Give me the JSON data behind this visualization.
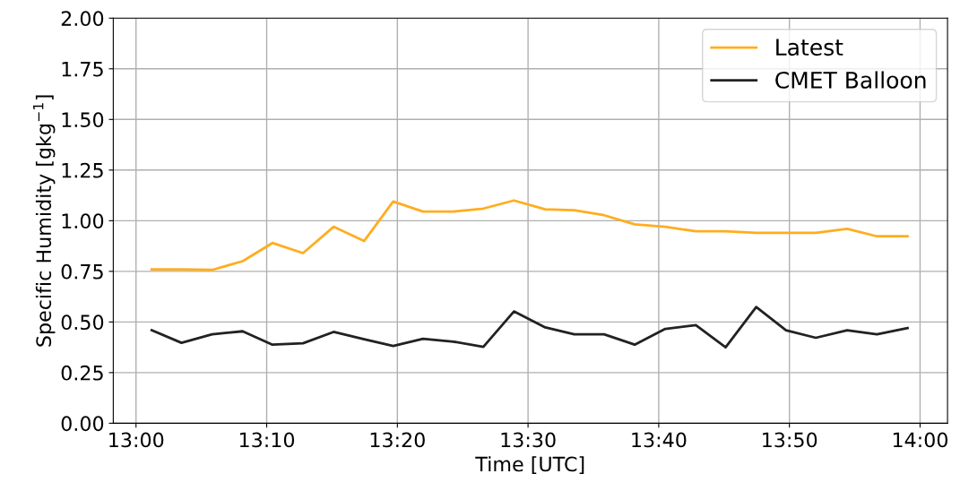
{
  "chart_data": {
    "type": "line",
    "xlabel": "Time [UTC]",
    "ylabel": "Specific Humidity [gkg$^{−1}$]",
    "x": [
      13.02,
      13.058,
      13.097,
      13.136,
      13.174,
      13.213,
      13.252,
      13.291,
      13.328,
      13.366,
      13.405,
      13.443,
      13.482,
      13.522,
      13.559,
      13.597,
      13.636,
      13.675,
      13.714,
      13.752,
      13.791,
      13.829,
      13.867,
      13.907,
      13.945,
      13.984
    ],
    "series": [
      {
        "name": "Latest",
        "color": "#ffad1f",
        "values": [
          0.76,
          0.76,
          0.757,
          0.8,
          0.89,
          0.84,
          0.97,
          0.9,
          1.095,
          1.045,
          1.045,
          1.06,
          1.1,
          1.056,
          1.052,
          1.027,
          0.982,
          0.97,
          0.948,
          0.948,
          0.94,
          0.94,
          0.94,
          0.96,
          0.923,
          0.923
        ]
      },
      {
        "name": "CMET Balloon",
        "color": "#222222",
        "values": [
          0.459,
          0.397,
          0.439,
          0.454,
          0.388,
          0.395,
          0.451,
          0.415,
          0.382,
          0.417,
          0.403,
          0.377,
          0.552,
          0.473,
          0.439,
          0.439,
          0.388,
          0.466,
          0.484,
          0.375,
          0.574,
          0.459,
          0.422,
          0.459,
          0.439,
          0.47
        ]
      }
    ],
    "xlim": [
      12.971,
      14.035
    ],
    "xticks": [
      {
        "value": 13,
        "label": "13:00"
      },
      {
        "value": 13.1666667,
        "label": "13:10"
      },
      {
        "value": 13.3333333,
        "label": "13:20"
      },
      {
        "value": 13.5,
        "label": "13:30"
      },
      {
        "value": 13.6666667,
        "label": "13:40"
      },
      {
        "value": 13.8333333,
        "label": "13:50"
      },
      {
        "value": 14,
        "label": "14:00"
      }
    ],
    "ylim": [
      0,
      2
    ],
    "yticks": [
      {
        "value": 0,
        "label": "0.00"
      },
      {
        "value": 0.25,
        "label": "0.25"
      },
      {
        "value": 0.5,
        "label": "0.50"
      },
      {
        "value": 0.75,
        "label": "0.75"
      },
      {
        "value": 1,
        "label": "1.00"
      },
      {
        "value": 1.25,
        "label": "1.25"
      },
      {
        "value": 1.5,
        "label": "1.50"
      },
      {
        "value": 1.75,
        "label": "1.75"
      },
      {
        "value": 2,
        "label": "2.00"
      }
    ],
    "grid": true,
    "legend": "top right",
    "line_style": "solid",
    "marker": "none"
  }
}
